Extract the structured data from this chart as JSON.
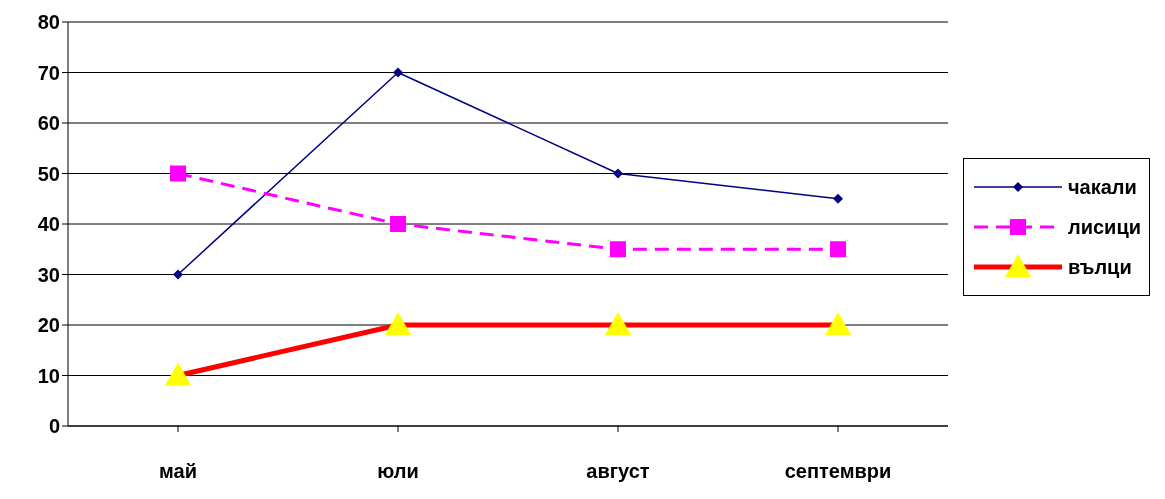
{
  "chart_data": {
    "type": "line",
    "categories": [
      "май",
      "юли",
      "август",
      "септември"
    ],
    "series": [
      {
        "name": "чакали",
        "color": "#000080",
        "values": [
          30,
          70,
          50,
          45
        ],
        "marker": "diamond",
        "line_style": "solid"
      },
      {
        "name": "лисици",
        "color": "#ff00ff",
        "values": [
          50,
          40,
          35,
          35
        ],
        "marker": "square",
        "line_style": "dashed"
      },
      {
        "name": "вълци",
        "color": "#ff0000",
        "values": [
          10,
          20,
          20,
          20
        ],
        "marker": "triangle",
        "line_style": "solid"
      }
    ],
    "ylim": [
      0,
      80
    ],
    "yticks": [
      0,
      10,
      20,
      30,
      40,
      50,
      60,
      70,
      80
    ],
    "grid": "y",
    "legend": "right"
  }
}
